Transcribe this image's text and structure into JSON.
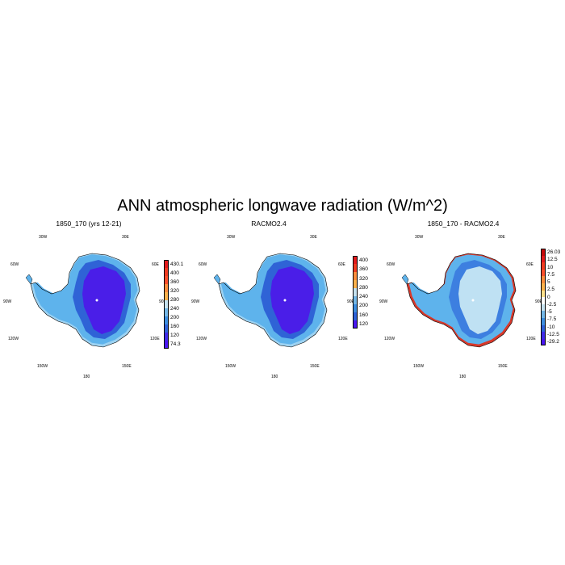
{
  "title": "ANN atmospheric longwave radiation (W/m^2)",
  "longitude_labels": {
    "w30": "30W",
    "e30": "30E",
    "w60": "60W",
    "e60": "60E",
    "w90": "90W",
    "e90": "90E",
    "w120": "120W",
    "e120": "120E",
    "w150": "150W",
    "e150": "150E",
    "s180": "180"
  },
  "panels": [
    {
      "title": "1850_170 (yrs 12-21)",
      "colorbar": {
        "labels": [
          "430.1",
          "400",
          "360",
          "320",
          "280",
          "240",
          "200",
          "160",
          "120",
          "74.3"
        ],
        "colors": [
          "#e31a1c",
          "#f03b20",
          "#fc4e2a",
          "#fd8d3c",
          "#feb24c",
          "#c6e2ef",
          "#74b7e6",
          "#3d8ee0",
          "#2e62d8",
          "#3f2be8",
          "#4a16f2"
        ]
      },
      "map_fill": {
        "interior": "#4a1ee8",
        "middle": "#2f63d6",
        "coast": "#5eb3ec",
        "edge": "#9cd2f2"
      }
    },
    {
      "title": "RACMO2.4",
      "colorbar": {
        "labels": [
          "400",
          "360",
          "320",
          "280",
          "240",
          "200",
          "160",
          "120"
        ],
        "colors": [
          "#e31a1c",
          "#f03b20",
          "#fd8d3c",
          "#feb24c",
          "#c6e2ef",
          "#74b7e6",
          "#3d8ee0",
          "#2e62d8",
          "#4a16f2"
        ]
      },
      "map_fill": {
        "interior": "#4a1ee8",
        "middle": "#2f63d6",
        "coast": "#5eb3ec",
        "edge": "#9cd2f2"
      }
    },
    {
      "title": "1850_170 - RACMO2.4",
      "colorbar": {
        "labels": [
          "26.03",
          "12.5",
          "10",
          "7.5",
          "5",
          "2.5",
          "0",
          "-2.5",
          "-5",
          "-7.5",
          "-10",
          "-12.5",
          "-29.2"
        ],
        "colors": [
          "#c40a0a",
          "#e31a1c",
          "#f03b20",
          "#fc4e2a",
          "#fd8d3c",
          "#feb24c",
          "#fee08b",
          "#ffffff",
          "#c6e2ef",
          "#74b7e6",
          "#3d8ee0",
          "#2e62d8",
          "#3f2be8",
          "#4a16f2"
        ]
      },
      "map_fill": {
        "interior": "#bfe1f3",
        "middle": "#3d7fe0",
        "coast": "#5eb3ec",
        "edge": "#d8382a"
      }
    }
  ]
}
